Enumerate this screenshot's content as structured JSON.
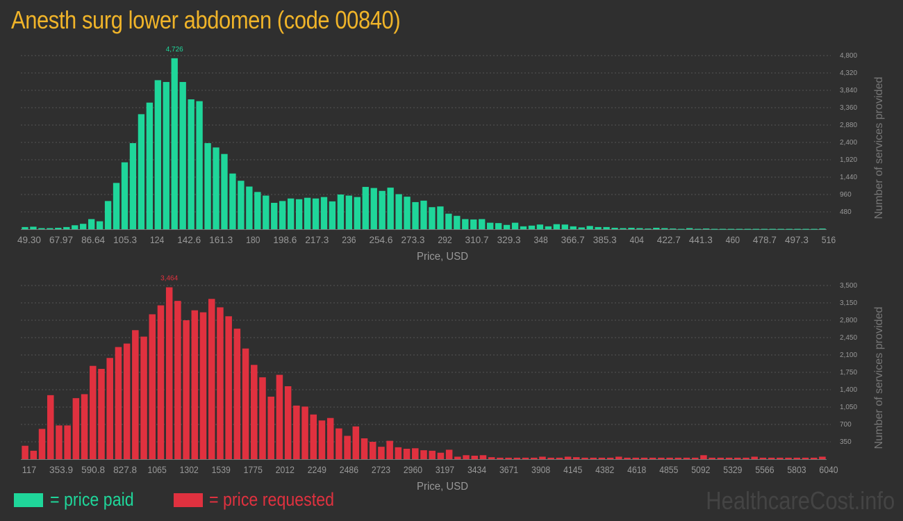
{
  "title": "Anesth surg lower abdomen (code 00840)",
  "legend": {
    "paid_label": "= price paid",
    "requested_label": "= price requested"
  },
  "watermark": "HealthcareCost.info",
  "colors": {
    "background": "#2f2f2f",
    "title": "#f0b429",
    "paid": "#1fd69a",
    "requested": "#e0313f",
    "axis_text": "#999999",
    "gridline": "#555555"
  },
  "chart_data": [
    {
      "type": "bar",
      "xlabel": "Price, USD",
      "ylabel": "Number of services provided",
      "color": "#1fd69a",
      "x_tick_labels": [
        "49.30",
        "67.97",
        "86.64",
        "105.3",
        "124",
        "142.6",
        "161.3",
        "180",
        "198.6",
        "217.3",
        "236",
        "254.6",
        "273.3",
        "292",
        "310.7",
        "329.3",
        "348",
        "366.7",
        "385.3",
        "404",
        "422.7",
        "441.3",
        "460",
        "478.7",
        "497.3",
        "516"
      ],
      "y_ticks": [
        480,
        960,
        1440,
        1920,
        2400,
        2880,
        3360,
        3840,
        4320,
        4800
      ],
      "y_tick_labels": [
        "480",
        "960",
        "1,440",
        "1,920",
        "2,400",
        "2,880",
        "3,360",
        "3,840",
        "4,320",
        "4,800"
      ],
      "ylim": [
        0,
        4800
      ],
      "grid": true,
      "y_axis_side": "right",
      "peak_label": "4,726",
      "peak_value": 4726,
      "values": [
        60,
        70,
        30,
        30,
        40,
        60,
        110,
        150,
        280,
        220,
        780,
        1280,
        1850,
        2380,
        3180,
        3500,
        4120,
        4070,
        4726,
        4070,
        3590,
        3540,
        2380,
        2260,
        2080,
        1540,
        1340,
        1180,
        1030,
        930,
        730,
        780,
        850,
        830,
        870,
        850,
        890,
        770,
        960,
        930,
        890,
        1170,
        1140,
        1060,
        1150,
        970,
        900,
        750,
        790,
        610,
        630,
        430,
        370,
        280,
        270,
        280,
        180,
        170,
        120,
        180,
        80,
        100,
        130,
        80,
        140,
        130,
        80,
        50,
        90,
        60,
        60,
        40,
        30,
        40,
        30,
        20,
        40,
        30,
        20,
        10,
        30,
        10,
        20,
        10,
        10,
        10,
        10,
        10,
        10,
        10,
        10,
        10,
        10,
        10,
        10,
        10,
        20
      ]
    },
    {
      "type": "bar",
      "xlabel": "Price, USD",
      "ylabel": "Number of services provided",
      "color": "#e0313f",
      "x_tick_labels": [
        "117",
        "353.9",
        "590.8",
        "827.8",
        "1065",
        "1302",
        "1539",
        "1775",
        "2012",
        "2249",
        "2486",
        "2723",
        "2960",
        "3197",
        "3434",
        "3671",
        "3908",
        "4145",
        "4382",
        "4618",
        "4855",
        "5092",
        "5329",
        "5566",
        "5803",
        "6040"
      ],
      "y_ticks": [
        350,
        700,
        1050,
        1400,
        1750,
        2100,
        2450,
        2800,
        3150,
        3500
      ],
      "y_tick_labels": [
        "350",
        "700",
        "1,050",
        "1,400",
        "1,750",
        "2,100",
        "2,450",
        "2,800",
        "3,150",
        "3,500"
      ],
      "ylim": [
        0,
        3500
      ],
      "grid": true,
      "y_axis_side": "right",
      "peak_label": "3,464",
      "peak_value": 3464,
      "values": [
        270,
        170,
        610,
        1290,
        680,
        680,
        1230,
        1310,
        1880,
        1820,
        2040,
        2260,
        2330,
        2600,
        2470,
        2920,
        3100,
        3464,
        3190,
        2800,
        3000,
        2960,
        3230,
        3060,
        2880,
        2630,
        2230,
        1900,
        1650,
        1260,
        1700,
        1470,
        1080,
        1060,
        900,
        780,
        830,
        620,
        470,
        660,
        420,
        350,
        250,
        370,
        240,
        210,
        220,
        180,
        170,
        130,
        190,
        50,
        80,
        70,
        80,
        40,
        30,
        30,
        30,
        30,
        30,
        50,
        30,
        30,
        50,
        40,
        30,
        30,
        30,
        30,
        50,
        30,
        30,
        30,
        30,
        30,
        30,
        30,
        30,
        30,
        80,
        30,
        30,
        30,
        30,
        30,
        50,
        30,
        30,
        30,
        30,
        30,
        30,
        30,
        50
      ]
    }
  ]
}
